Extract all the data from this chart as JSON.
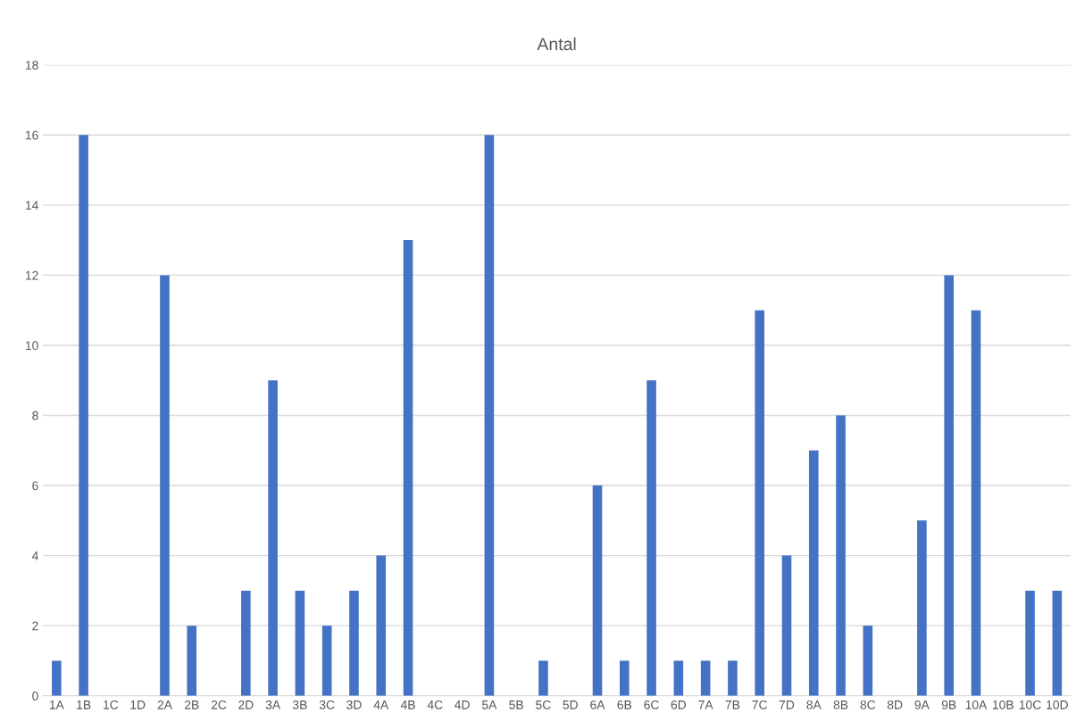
{
  "chart_data": {
    "type": "bar",
    "title": "Antal",
    "categories": [
      "1A",
      "1B",
      "1C",
      "1D",
      "2A",
      "2B",
      "2C",
      "2D",
      "3A",
      "3B",
      "3C",
      "3D",
      "4A",
      "4B",
      "4C",
      "4D",
      "5A",
      "5B",
      "5C",
      "5D",
      "6A",
      "6B",
      "6C",
      "6D",
      "7A",
      "7B",
      "7C",
      "7D",
      "8A",
      "8B",
      "8C",
      "8D",
      "9A",
      "9B",
      "10A",
      "10B",
      "10C",
      "10D"
    ],
    "values": [
      1,
      16,
      0,
      0,
      12,
      2,
      0,
      3,
      9,
      3,
      2,
      3,
      4,
      13,
      0,
      0,
      16,
      0,
      1,
      0,
      6,
      1,
      9,
      1,
      1,
      1,
      11,
      4,
      7,
      8,
      2,
      0,
      5,
      12,
      11,
      0,
      3,
      3
    ],
    "color": "#4472c4",
    "ylim": [
      0,
      18
    ],
    "yticks": [
      0,
      2,
      4,
      6,
      8,
      10,
      12,
      14,
      16,
      18
    ],
    "grid": "y"
  }
}
